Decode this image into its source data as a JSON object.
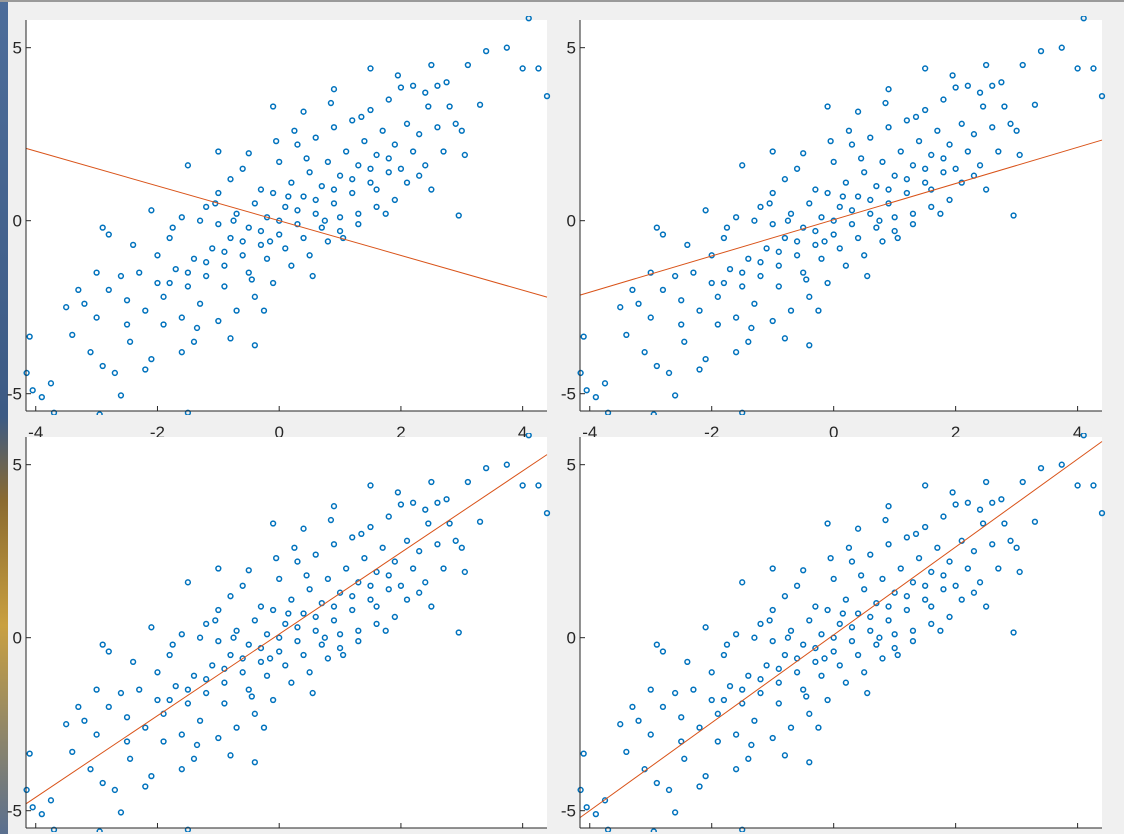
{
  "chart_data": [
    {
      "type": "scatter",
      "panel": "top-left",
      "xlim": [
        -4.16,
        4.4
      ],
      "ylim": [
        -5.5,
        5.8
      ],
      "xticks": [
        "-4",
        "-2",
        "0",
        "2",
        "4"
      ],
      "yticks": [
        "-5",
        "0",
        "5"
      ],
      "fit_line": {
        "x": [
          -4.16,
          4.4
        ],
        "y": [
          2.09,
          -2.21
        ]
      }
    },
    {
      "type": "scatter",
      "panel": "top-right",
      "xlim": [
        -4.16,
        4.4
      ],
      "ylim": [
        -5.5,
        5.8
      ],
      "xticks": [
        "-4",
        "-2",
        "0",
        "2",
        "4"
      ],
      "yticks": [
        "-5",
        "0",
        "5"
      ],
      "fit_line": {
        "x": [
          -4.16,
          4.4
        ],
        "y": [
          -2.15,
          2.33
        ]
      }
    },
    {
      "type": "scatter",
      "panel": "bottom-left",
      "xlim": [
        -4.16,
        4.4
      ],
      "ylim": [
        -5.5,
        5.8
      ],
      "xticks": [],
      "yticks": [
        "-5",
        "0",
        "5"
      ],
      "fit_line": {
        "x": [
          -4.16,
          4.4
        ],
        "y": [
          -4.8,
          5.29
        ]
      }
    },
    {
      "type": "scatter",
      "panel": "bottom-right",
      "xlim": [
        -4.16,
        4.4
      ],
      "ylim": [
        -5.5,
        5.8
      ],
      "xticks": [],
      "yticks": [
        "-5",
        "0",
        "5"
      ],
      "fit_line": {
        "x": [
          -4.16,
          4.4
        ],
        "y": [
          -5.2,
          5.67
        ]
      }
    }
  ],
  "points": [
    [
      -4.15,
      -4.4
    ],
    [
      -4.1,
      -3.35
    ],
    [
      -4.05,
      -4.9
    ],
    [
      -3.9,
      -5.1
    ],
    [
      -3.75,
      -4.7
    ],
    [
      -3.7,
      -5.55
    ],
    [
      -2.95,
      -5.6
    ],
    [
      -2.6,
      -5.05
    ],
    [
      -1.5,
      -5.55
    ],
    [
      4.1,
      5.85
    ],
    [
      4.0,
      4.4
    ],
    [
      4.26,
      4.4
    ],
    [
      4.4,
      3.6
    ],
    [
      3.74,
      5.0
    ],
    [
      3.4,
      4.9
    ],
    [
      3.1,
      4.5
    ],
    [
      3.3,
      3.35
    ],
    [
      3.05,
      1.9
    ],
    [
      2.95,
      0.15
    ],
    [
      2.5,
      4.5
    ],
    [
      2.6,
      3.9
    ],
    [
      2.8,
      3.3
    ],
    [
      2.4,
      3.7
    ],
    [
      2.2,
      3.9
    ],
    [
      2.0,
      3.85
    ],
    [
      1.5,
      4.4
    ],
    [
      0.9,
      3.8
    ],
    [
      0.4,
      3.15
    ],
    [
      -0.1,
      3.3
    ],
    [
      -0.5,
      1.95
    ],
    [
      -1.0,
      2.0
    ],
    [
      -1.5,
      1.6
    ],
    [
      -3.2,
      -2.4
    ],
    [
      -3.0,
      -1.5
    ],
    [
      -3.4,
      -3.3
    ],
    [
      -3.1,
      -3.8
    ],
    [
      -2.9,
      -4.2
    ],
    [
      -2.7,
      -4.4
    ],
    [
      -2.5,
      -3.0
    ],
    [
      -2.2,
      -4.3
    ],
    [
      -2.1,
      -4.0
    ],
    [
      -1.6,
      -3.8
    ],
    [
      -1.4,
      -3.5
    ],
    [
      -0.8,
      -3.4
    ],
    [
      -0.4,
      -3.6
    ],
    [
      -2.8,
      -0.4
    ],
    [
      -2.9,
      -0.2
    ],
    [
      -2.4,
      -0.7
    ],
    [
      -2.0,
      -1.0
    ],
    [
      -1.8,
      -0.5
    ],
    [
      -1.6,
      0.1
    ],
    [
      -1.2,
      0.4
    ],
    [
      -1.0,
      0.8
    ],
    [
      -0.8,
      1.2
    ],
    [
      -0.6,
      1.5
    ],
    [
      -0.3,
      0.9
    ],
    [
      0.0,
      1.7
    ],
    [
      0.3,
      2.2
    ],
    [
      0.6,
      2.4
    ],
    [
      0.9,
      2.7
    ],
    [
      1.2,
      2.9
    ],
    [
      1.5,
      3.2
    ],
    [
      1.8,
      3.5
    ],
    [
      2.1,
      2.8
    ],
    [
      2.3,
      2.5
    ],
    [
      2.6,
      2.7
    ],
    [
      2.9,
      2.8
    ],
    [
      3.0,
      2.6
    ],
    [
      2.7,
      2.0
    ],
    [
      2.4,
      1.6
    ],
    [
      2.1,
      1.1
    ],
    [
      1.9,
      0.6
    ],
    [
      1.6,
      0.9
    ],
    [
      1.3,
      0.2
    ],
    [
      1.0,
      -0.3
    ],
    [
      0.8,
      -0.6
    ],
    [
      0.5,
      -1.0
    ],
    [
      0.2,
      -1.3
    ],
    [
      -0.1,
      -1.8
    ],
    [
      -0.4,
      -2.2
    ],
    [
      -0.7,
      -2.6
    ],
    [
      -1.0,
      -2.9
    ],
    [
      -1.3,
      -2.4
    ],
    [
      -1.6,
      -2.8
    ],
    [
      -1.9,
      -3.0
    ],
    [
      -2.2,
      -2.6
    ],
    [
      -2.5,
      -2.3
    ],
    [
      -2.8,
      -2.0
    ],
    [
      -3.0,
      -2.8
    ],
    [
      -3.3,
      -2.0
    ],
    [
      -3.5,
      -2.5
    ],
    [
      -2.3,
      -1.5
    ],
    [
      -2.0,
      -1.8
    ],
    [
      -1.7,
      -1.4
    ],
    [
      -1.4,
      -1.1
    ],
    [
      -1.1,
      -0.8
    ],
    [
      -0.8,
      -0.5
    ],
    [
      -0.5,
      -0.2
    ],
    [
      -0.2,
      0.1
    ],
    [
      0.1,
      0.4
    ],
    [
      0.4,
      0.7
    ],
    [
      0.7,
      1.0
    ],
    [
      1.0,
      1.3
    ],
    [
      1.3,
      1.6
    ],
    [
      1.6,
      1.9
    ],
    [
      1.9,
      2.2
    ],
    [
      2.2,
      2.0
    ],
    [
      -1.9,
      -2.2
    ],
    [
      -1.5,
      -1.9
    ],
    [
      -1.2,
      -1.6
    ],
    [
      -0.9,
      -1.3
    ],
    [
      -0.6,
      -1.0
    ],
    [
      -0.3,
      -0.7
    ],
    [
      0.0,
      -0.4
    ],
    [
      0.3,
      -0.1
    ],
    [
      0.6,
      0.2
    ],
    [
      0.9,
      0.5
    ],
    [
      1.2,
      0.8
    ],
    [
      1.5,
      1.1
    ],
    [
      1.8,
      1.4
    ],
    [
      -1.0,
      -0.1
    ],
    [
      -0.7,
      0.2
    ],
    [
      -0.4,
      0.5
    ],
    [
      -0.1,
      0.8
    ],
    [
      0.2,
      1.1
    ],
    [
      0.5,
      1.4
    ],
    [
      0.8,
      1.7
    ],
    [
      1.1,
      2.0
    ],
    [
      1.4,
      2.3
    ],
    [
      1.7,
      2.6
    ],
    [
      -1.3,
      0.0
    ],
    [
      -0.9,
      -1.9
    ],
    [
      -0.5,
      -1.5
    ],
    [
      -0.2,
      -1.1
    ],
    [
      0.1,
      -0.8
    ],
    [
      0.4,
      -0.5
    ],
    [
      0.7,
      -0.2
    ],
    [
      1.0,
      0.1
    ],
    [
      1.3,
      -0.1
    ],
    [
      1.6,
      0.4
    ],
    [
      2.0,
      1.5
    ],
    [
      2.3,
      1.3
    ],
    [
      2.5,
      0.9
    ],
    [
      0.0,
      0.0
    ],
    [
      -0.3,
      -0.3
    ],
    [
      0.3,
      0.3
    ],
    [
      0.6,
      0.6
    ],
    [
      0.9,
      0.9
    ],
    [
      -0.6,
      -0.6
    ],
    [
      -0.9,
      -0.9
    ],
    [
      -1.2,
      -1.2
    ],
    [
      1.2,
      1.2
    ],
    [
      1.5,
      1.5
    ],
    [
      -1.5,
      -1.5
    ],
    [
      -1.8,
      -1.8
    ],
    [
      1.8,
      1.8
    ],
    [
      0.15,
      0.7
    ],
    [
      -0.15,
      -0.6
    ],
    [
      0.45,
      1.8
    ],
    [
      -0.45,
      -1.7
    ],
    [
      0.75,
      0.0
    ],
    [
      -0.75,
      0.0
    ],
    [
      1.05,
      -0.5
    ],
    [
      -1.05,
      0.5
    ],
    [
      0.25,
      2.6
    ],
    [
      -0.25,
      -2.6
    ],
    [
      1.35,
      3.0
    ],
    [
      -1.35,
      -3.1
    ],
    [
      2.45,
      3.3
    ],
    [
      -2.45,
      -3.5
    ],
    [
      0.55,
      -1.6
    ],
    [
      1.75,
      0.2
    ],
    [
      -1.75,
      -0.2
    ],
    [
      -2.6,
      -1.6
    ],
    [
      -2.1,
      0.3
    ],
    [
      0.85,
      3.4
    ],
    [
      1.95,
      4.2
    ],
    [
      2.75,
      4.0
    ],
    [
      -0.05,
      2.3
    ]
  ]
}
